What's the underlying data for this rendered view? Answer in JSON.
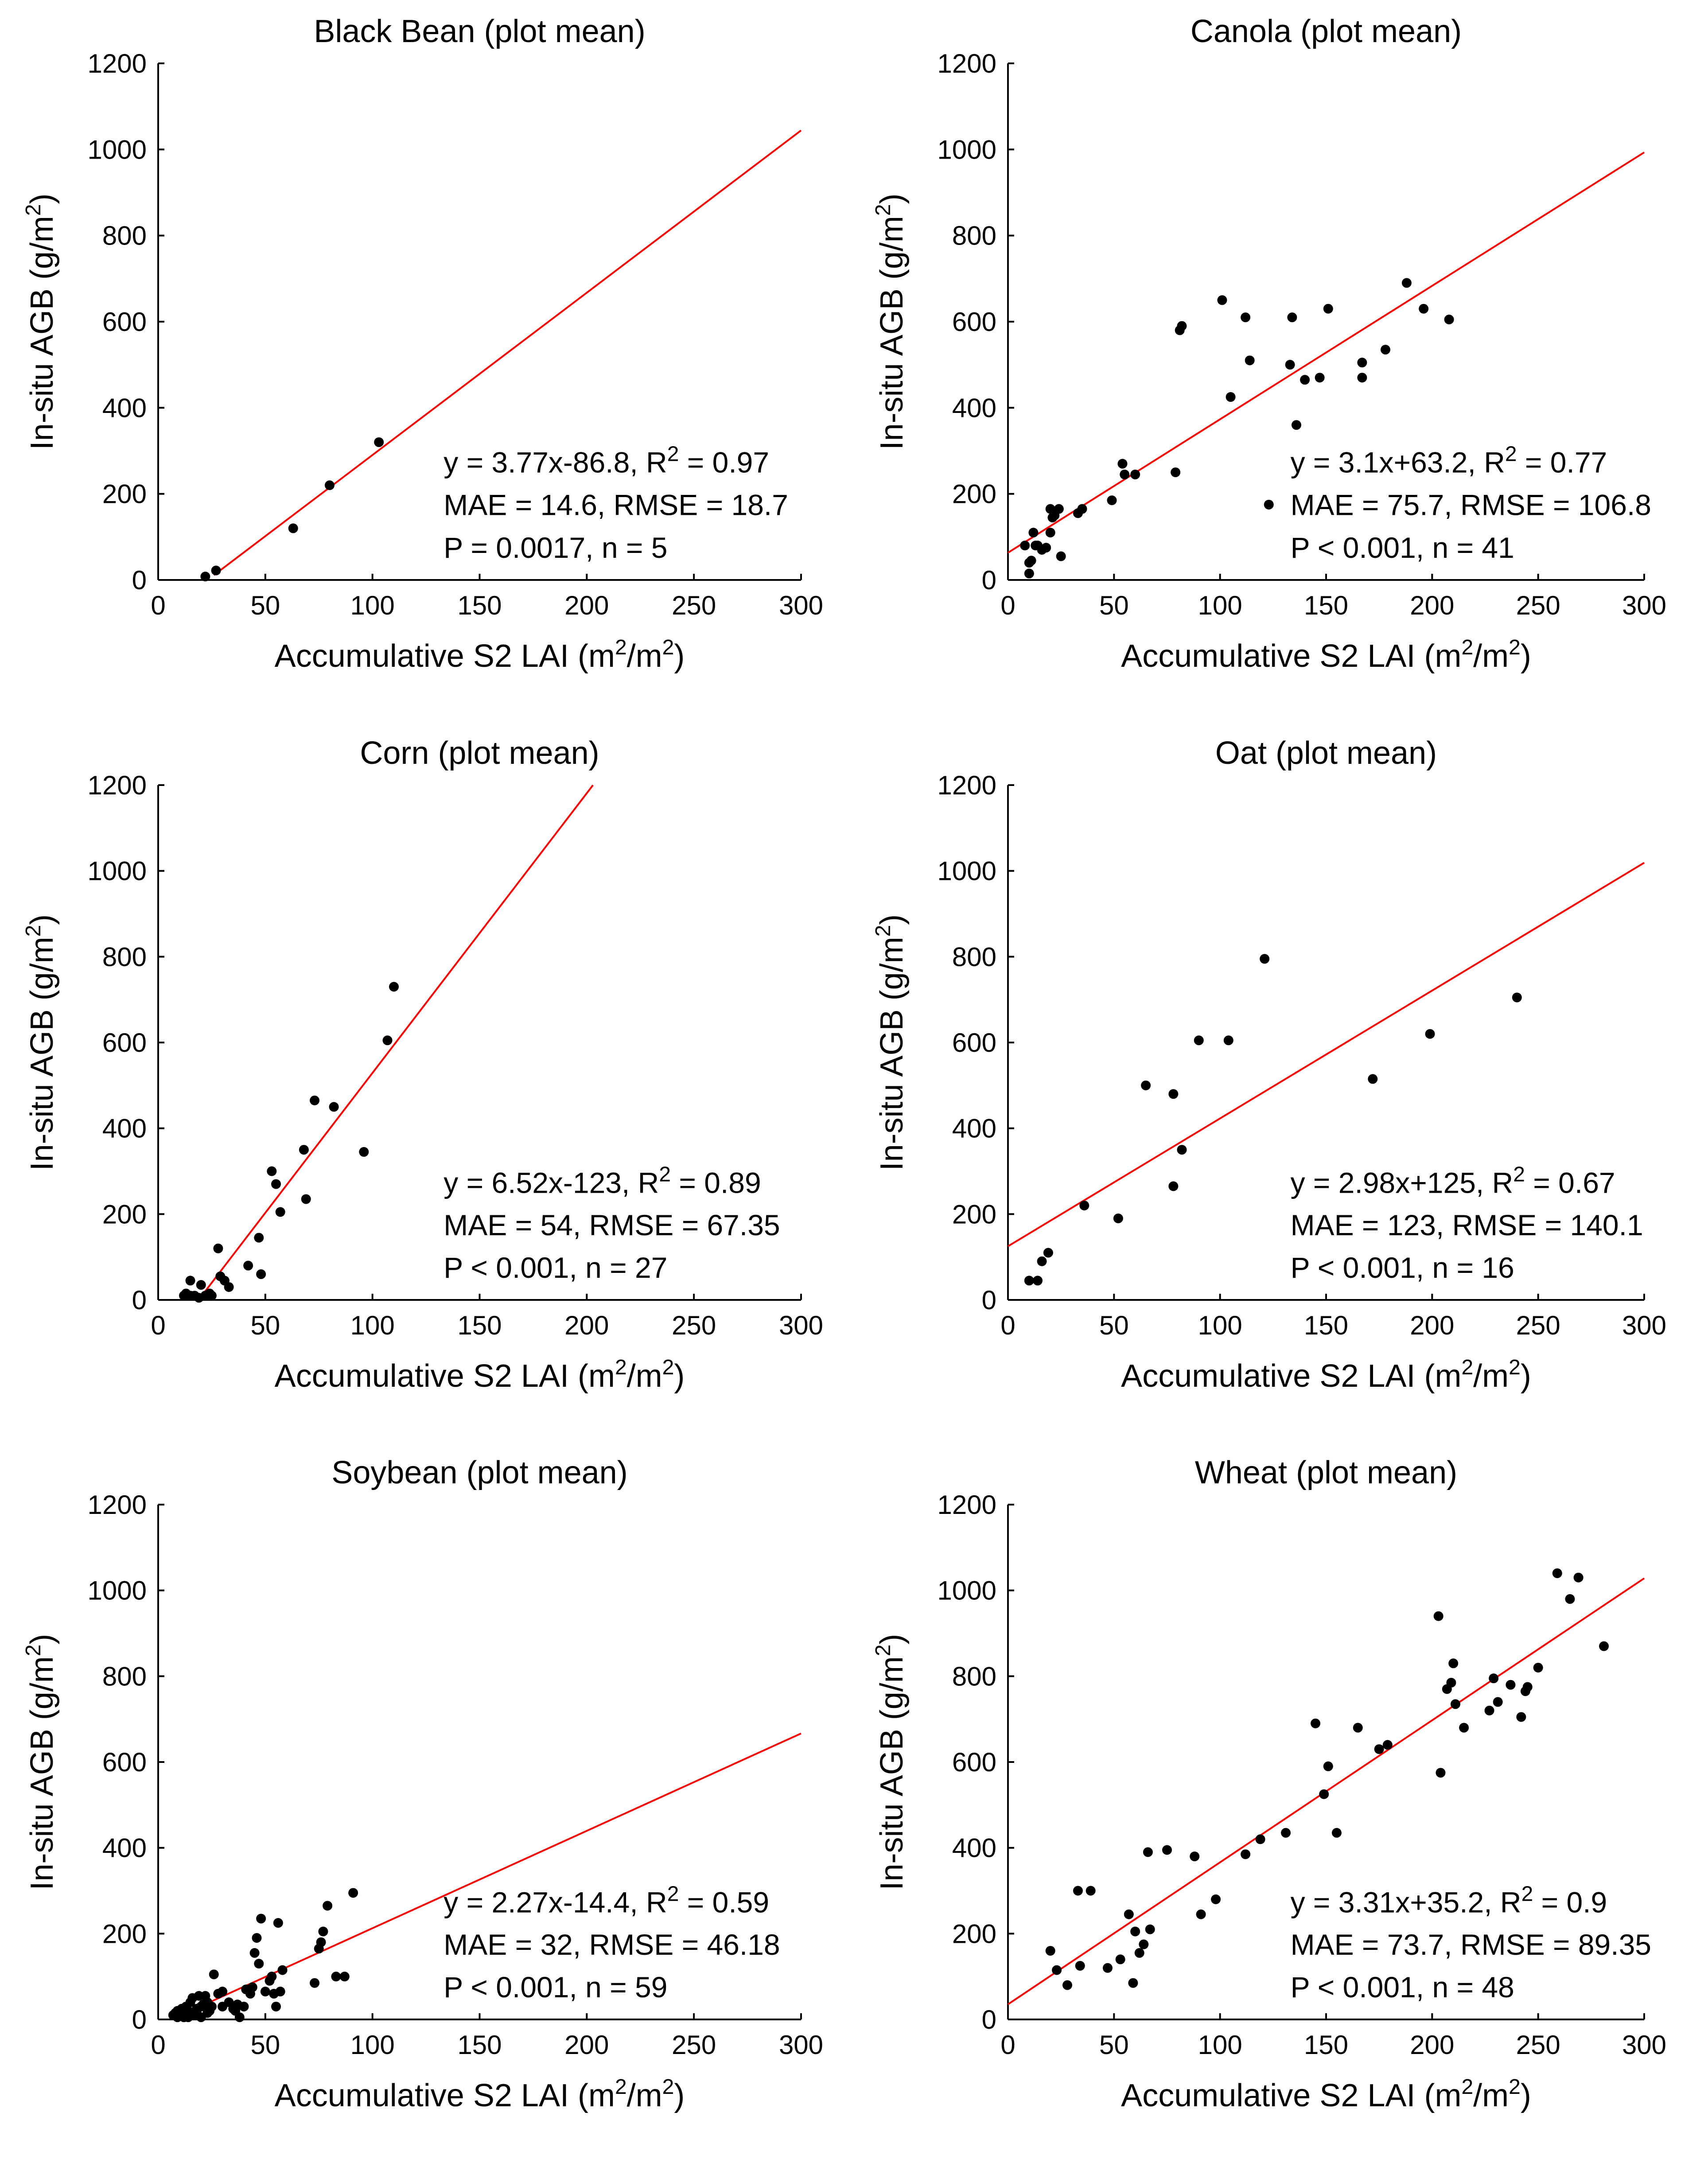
{
  "chart_data": [
    {
      "type": "scatter",
      "title": "Black Bean (plot mean)",
      "xlabel": "Accumulative S2 LAI (m",
      "xlabel_sup1": "2",
      "xlabel_mid": "/m",
      "xlabel_sup2": "2",
      "xlabel_end": ")",
      "ylabel": "In-situ AGB (g/m",
      "ylabel_sup": "2",
      "ylabel_end": ")",
      "xlim": [
        0,
        300
      ],
      "ylim": [
        0,
        1200
      ],
      "xticks": [
        0,
        50,
        100,
        150,
        200,
        250,
        300
      ],
      "yticks": [
        0,
        200,
        400,
        600,
        800,
        1000,
        1200
      ],
      "fit": {
        "slope": 3.77,
        "intercept": -86.8,
        "x_range": [
          26,
          300
        ]
      },
      "stats": {
        "line1": "y = 3.77x-86.8, R",
        "line1_sup": "2",
        "line1_end": " = 0.97",
        "line2": "MAE = 14.6, RMSE = 18.7",
        "line3": "P = 0.0017, n = 5"
      },
      "points": [
        [
          22,
          8
        ],
        [
          27,
          22
        ],
        [
          63,
          120
        ],
        [
          80,
          220
        ],
        [
          103,
          320
        ]
      ]
    },
    {
      "type": "scatter",
      "title": "Canola (plot mean)",
      "xlabel": "Accumulative S2 LAI (m",
      "xlabel_sup1": "2",
      "xlabel_mid": "/m",
      "xlabel_sup2": "2",
      "xlabel_end": ")",
      "ylabel": "In-situ AGB (g/m",
      "ylabel_sup": "2",
      "ylabel_end": ")",
      "xlim": [
        0,
        300
      ],
      "ylim": [
        0,
        1200
      ],
      "xticks": [
        0,
        50,
        100,
        150,
        200,
        250,
        300
      ],
      "yticks": [
        0,
        200,
        400,
        600,
        800,
        1000,
        1200
      ],
      "fit": {
        "slope": 3.1,
        "intercept": 63.2,
        "x_range": [
          0,
          300
        ]
      },
      "stats": {
        "line1": "y = 3.1x+63.2, R",
        "line1_sup": "2",
        "line1_end": " = 0.77",
        "line2": "MAE = 75.7, RMSE = 106.8",
        "line3": "P < 0.001, n = 41"
      },
      "points": [
        [
          8,
          80
        ],
        [
          10,
          15
        ],
        [
          10,
          40
        ],
        [
          11,
          45
        ],
        [
          12,
          110
        ],
        [
          13,
          80
        ],
        [
          16,
          70
        ],
        [
          18,
          75
        ],
        [
          20,
          110
        ],
        [
          21,
          145
        ],
        [
          22,
          150
        ],
        [
          24,
          165
        ],
        [
          25,
          55
        ],
        [
          33,
          155
        ],
        [
          35,
          165
        ],
        [
          49,
          185
        ],
        [
          54,
          270
        ],
        [
          55,
          245
        ],
        [
          60,
          245
        ],
        [
          79,
          250
        ],
        [
          81,
          580
        ],
        [
          82,
          590
        ],
        [
          101,
          650
        ],
        [
          105,
          425
        ],
        [
          112,
          610
        ],
        [
          114,
          510
        ],
        [
          123,
          175
        ],
        [
          133,
          500
        ],
        [
          134,
          610
        ],
        [
          136,
          360
        ],
        [
          140,
          465
        ],
        [
          147,
          470
        ],
        [
          151,
          630
        ],
        [
          167,
          505
        ],
        [
          167,
          470
        ],
        [
          178,
          535
        ],
        [
          188,
          690
        ],
        [
          196,
          630
        ],
        [
          208,
          605
        ],
        [
          20,
          165
        ],
        [
          14,
          80
        ]
      ]
    },
    {
      "type": "scatter",
      "title": "Corn (plot mean)",
      "xlabel": "Accumulative S2 LAI (m",
      "xlabel_sup1": "2",
      "xlabel_mid": "/m",
      "xlabel_sup2": "2",
      "xlabel_end": ")",
      "ylabel": "In-situ AGB (g/m",
      "ylabel_sup": "2",
      "ylabel_end": ")",
      "xlim": [
        0,
        300
      ],
      "ylim": [
        0,
        1200
      ],
      "xticks": [
        0,
        50,
        100,
        150,
        200,
        250,
        300
      ],
      "yticks": [
        0,
        200,
        400,
        600,
        800,
        1000,
        1200
      ],
      "fit": {
        "slope": 6.52,
        "intercept": -123,
        "x_range": [
          19,
          202.9
        ]
      },
      "stats": {
        "line1": "y = 6.52x-123, R",
        "line1_sup": "2",
        "line1_end": " = 0.89",
        "line2": "MAE = 54, RMSE = 67.35",
        "line3": "P < 0.001, n = 27"
      },
      "points": [
        [
          12,
          10
        ],
        [
          13,
          15
        ],
        [
          15,
          45
        ],
        [
          17,
          10
        ],
        [
          19,
          5
        ],
        [
          20,
          35
        ],
        [
          22,
          10
        ],
        [
          24,
          15
        ],
        [
          28,
          120
        ],
        [
          29,
          55
        ],
        [
          31,
          45
        ],
        [
          33,
          30
        ],
        [
          42,
          80
        ],
        [
          47,
          145
        ],
        [
          48,
          60
        ],
        [
          53,
          300
        ],
        [
          55,
          270
        ],
        [
          57,
          205
        ],
        [
          68,
          350
        ],
        [
          69,
          235
        ],
        [
          73,
          465
        ],
        [
          82,
          450
        ],
        [
          96,
          345
        ],
        [
          107,
          605
        ],
        [
          110,
          730
        ],
        [
          15,
          10
        ],
        [
          25,
          10
        ]
      ]
    },
    {
      "type": "scatter",
      "title": "Oat (plot mean)",
      "xlabel": "Accumulative S2 LAI (m",
      "xlabel_sup1": "2",
      "xlabel_mid": "/m",
      "xlabel_sup2": "2",
      "xlabel_end": ")",
      "ylabel": "In-situ AGB (g/m",
      "ylabel_sup": "2",
      "ylabel_end": ")",
      "xlim": [
        0,
        300
      ],
      "ylim": [
        0,
        1200
      ],
      "xticks": [
        0,
        50,
        100,
        150,
        200,
        250,
        300
      ],
      "yticks": [
        0,
        200,
        400,
        600,
        800,
        1000,
        1200
      ],
      "fit": {
        "slope": 2.98,
        "intercept": 125,
        "x_range": [
          0,
          300
        ]
      },
      "stats": {
        "line1": "y = 2.98x+125, R",
        "line1_sup": "2",
        "line1_end": " = 0.67",
        "line2": "MAE = 123, RMSE = 140.1",
        "line3": "P < 0.001, n = 16"
      },
      "points": [
        [
          10,
          45
        ],
        [
          14,
          45
        ],
        [
          16,
          90
        ],
        [
          19,
          110
        ],
        [
          36,
          220
        ],
        [
          52,
          190
        ],
        [
          65,
          500
        ],
        [
          78,
          480
        ],
        [
          78,
          265
        ],
        [
          82,
          350
        ],
        [
          90,
          605
        ],
        [
          104,
          605
        ],
        [
          121,
          795
        ],
        [
          172,
          515
        ],
        [
          199,
          620
        ],
        [
          240,
          705
        ]
      ]
    },
    {
      "type": "scatter",
      "title": "Soybean (plot mean)",
      "xlabel": "Accumulative S2 LAI (m",
      "xlabel_sup1": "2",
      "xlabel_mid": "/m",
      "xlabel_sup2": "2",
      "xlabel_end": ")",
      "ylabel": "In-situ AGB (g/m",
      "ylabel_sup": "2",
      "ylabel_end": ")",
      "xlim": [
        0,
        300
      ],
      "ylim": [
        0,
        1200
      ],
      "xticks": [
        0,
        50,
        100,
        150,
        200,
        250,
        300
      ],
      "yticks": [
        0,
        200,
        400,
        600,
        800,
        1000,
        1200
      ],
      "fit": {
        "slope": 2.27,
        "intercept": -14.4,
        "x_range": [
          6.3,
          300
        ]
      },
      "stats": {
        "line1": "y = 2.27x-14.4, R",
        "line1_sup": "2",
        "line1_end": " = 0.59",
        "line2": "MAE = 32, RMSE = 46.18",
        "line3": "P < 0.001, n = 59"
      },
      "points": [
        [
          7,
          10
        ],
        [
          8,
          15
        ],
        [
          9,
          20
        ],
        [
          10,
          10
        ],
        [
          11,
          25
        ],
        [
          12,
          5
        ],
        [
          13,
          30
        ],
        [
          14,
          20
        ],
        [
          15,
          40
        ],
        [
          16,
          50
        ],
        [
          17,
          10
        ],
        [
          18,
          25
        ],
        [
          19,
          55
        ],
        [
          20,
          5
        ],
        [
          21,
          35
        ],
        [
          22,
          55
        ],
        [
          23,
          40
        ],
        [
          24,
          20
        ],
        [
          25,
          30
        ],
        [
          26,
          105
        ],
        [
          30,
          65
        ],
        [
          35,
          25
        ],
        [
          37,
          35
        ],
        [
          38,
          5
        ],
        [
          40,
          30
        ],
        [
          41,
          70
        ],
        [
          44,
          75
        ],
        [
          45,
          155
        ],
        [
          46,
          190
        ],
        [
          47,
          130
        ],
        [
          48,
          235
        ],
        [
          50,
          65
        ],
        [
          52,
          90
        ],
        [
          54,
          60
        ],
        [
          55,
          30
        ],
        [
          56,
          225
        ],
        [
          57,
          65
        ],
        [
          58,
          115
        ],
        [
          73,
          85
        ],
        [
          75,
          165
        ],
        [
          76,
          180
        ],
        [
          77,
          205
        ],
        [
          79,
          265
        ],
        [
          83,
          100
        ],
        [
          87,
          100
        ],
        [
          91,
          295
        ],
        [
          18,
          15
        ],
        [
          28,
          60
        ],
        [
          33,
          40
        ],
        [
          14,
          5
        ],
        [
          16,
          15
        ],
        [
          20,
          30
        ],
        [
          23,
          15
        ],
        [
          36,
          20
        ],
        [
          43,
          60
        ],
        [
          53,
          100
        ],
        [
          11,
          15
        ],
        [
          9,
          5
        ],
        [
          30,
          30
        ]
      ]
    },
    {
      "type": "scatter",
      "title": "Wheat (plot mean)",
      "xlabel": "Accumulative S2 LAI (m",
      "xlabel_sup1": "2",
      "xlabel_mid": "/m",
      "xlabel_sup2": "2",
      "xlabel_end": ")",
      "ylabel": "In-situ AGB (g/m",
      "ylabel_sup": "2",
      "ylabel_end": ")",
      "xlim": [
        0,
        300
      ],
      "ylim": [
        0,
        1200
      ],
      "xticks": [
        0,
        50,
        100,
        150,
        200,
        250,
        300
      ],
      "yticks": [
        0,
        200,
        400,
        600,
        800,
        1000,
        1200
      ],
      "fit": {
        "slope": 3.31,
        "intercept": 35.2,
        "x_range": [
          0,
          300
        ]
      },
      "stats": {
        "line1": "y = 3.31x+35.2, R",
        "line1_sup": "2",
        "line1_end": " = 0.9",
        "line2": "MAE = 73.7, RMSE = 89.35",
        "line3": "P < 0.001, n = 48"
      },
      "points": [
        [
          20,
          160
        ],
        [
          23,
          115
        ],
        [
          28,
          80
        ],
        [
          33,
          300
        ],
        [
          34,
          125
        ],
        [
          39,
          300
        ],
        [
          47,
          120
        ],
        [
          53,
          140
        ],
        [
          57,
          245
        ],
        [
          59,
          85
        ],
        [
          60,
          205
        ],
        [
          62,
          155
        ],
        [
          64,
          175
        ],
        [
          66,
          390
        ],
        [
          67,
          210
        ],
        [
          75,
          395
        ],
        [
          88,
          380
        ],
        [
          91,
          245
        ],
        [
          98,
          280
        ],
        [
          112,
          385
        ],
        [
          119,
          420
        ],
        [
          131,
          435
        ],
        [
          145,
          690
        ],
        [
          149,
          525
        ],
        [
          151,
          590
        ],
        [
          155,
          435
        ],
        [
          165,
          680
        ],
        [
          175,
          630
        ],
        [
          179,
          640
        ],
        [
          203,
          940
        ],
        [
          204,
          575
        ],
        [
          207,
          770
        ],
        [
          209,
          785
        ],
        [
          210,
          830
        ],
        [
          211,
          735
        ],
        [
          215,
          680
        ],
        [
          227,
          720
        ],
        [
          229,
          795
        ],
        [
          231,
          740
        ],
        [
          237,
          780
        ],
        [
          242,
          705
        ],
        [
          244,
          765
        ],
        [
          245,
          775
        ],
        [
          250,
          820
        ],
        [
          259,
          1040
        ],
        [
          265,
          980
        ],
        [
          269,
          1030
        ],
        [
          281,
          870
        ]
      ]
    }
  ]
}
